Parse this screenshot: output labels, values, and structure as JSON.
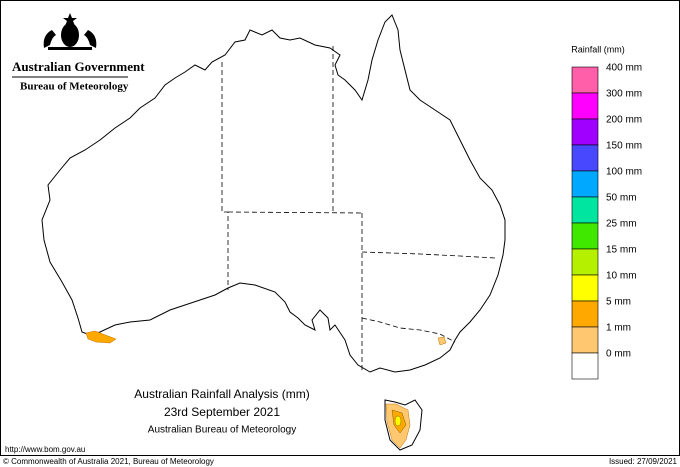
{
  "header": {
    "government": "Australian Government",
    "bureau": "Bureau of Meteorology"
  },
  "legend": {
    "title": "Rainfall (mm)",
    "colors": [
      "#ff5fa8",
      "#ff00ff",
      "#a000ff",
      "#4848ff",
      "#00a8ff",
      "#00e6a0",
      "#40e800",
      "#b4f000",
      "#ffff00",
      "#ffa800",
      "#ffc870",
      "#ffffff"
    ],
    "labels": [
      "400 mm",
      "300 mm",
      "200 mm",
      "150 mm",
      "100 mm",
      "50 mm",
      "25 mm",
      "15 mm",
      "10 mm",
      "5 mm",
      "1 mm",
      "0 mm"
    ]
  },
  "caption": {
    "title": "Australian Rainfall Analysis (mm)",
    "date": "23rd September 2021",
    "source": "Australian Bureau of Meteorology"
  },
  "footer": {
    "url": "http://www.bom.gov.au",
    "copyright": "© Commonwealth of Australia 2021, Bureau of Meteorology",
    "issued": "Issued: 27/09/2021"
  }
}
